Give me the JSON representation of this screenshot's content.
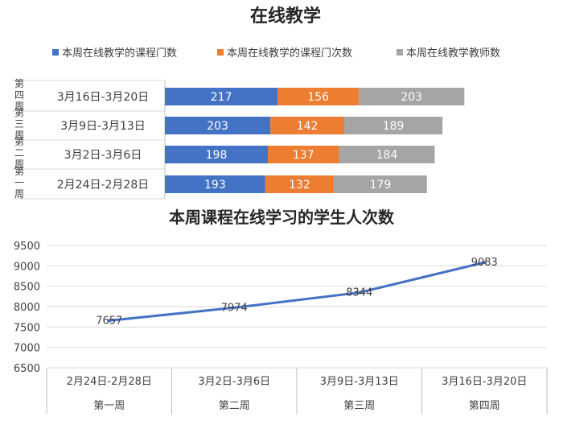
{
  "colors": {
    "blue": "#4472C4",
    "orange": "#ED7D31",
    "gray": "#A5A5A5",
    "text": "#404040",
    "grid": "#D9D9D9",
    "title": "#262626"
  },
  "chart_data": [
    {
      "type": "bar",
      "orientation": "horizontal",
      "stacked": true,
      "title": "在线教学",
      "legend_position": "top",
      "categories": [
        {
          "week": "第四周",
          "week_vertical": "第\n四\n周",
          "range": "3月16日-3月20日"
        },
        {
          "week": "第三周",
          "week_vertical": "第\n三\n周",
          "range": "3月9日-3月13日"
        },
        {
          "week": "第二周",
          "week_vertical": "第\n二\n周",
          "range": "3月2日-3月6日"
        },
        {
          "week": "第一周",
          "week_vertical": "第\n一\n周",
          "range": "2月24日-2月28日"
        }
      ],
      "series": [
        {
          "name": "本周在线教学的课程门数",
          "color": "#4472C4",
          "values": [
            217,
            203,
            198,
            193
          ]
        },
        {
          "name": "本周在线教学的课程门次数",
          "color": "#ED7D31",
          "values": [
            156,
            142,
            137,
            132
          ]
        },
        {
          "name": "本周在线教学教师数",
          "color": "#A5A5A5",
          "values": [
            203,
            189,
            184,
            179
          ]
        }
      ]
    },
    {
      "type": "line",
      "title": "本周课程在线学习的学生人次数",
      "x": [
        {
          "range": "2月24日-2月28日",
          "week": "第一周"
        },
        {
          "range": "3月2日-3月6日",
          "week": "第二周"
        },
        {
          "range": "3月9日-3月13日",
          "week": "第三周"
        },
        {
          "range": "3月16日-3月20日",
          "week": "第四周"
        }
      ],
      "values": [
        7657,
        7974,
        8344,
        9083
      ],
      "ylim": [
        6500,
        9500
      ],
      "yticks": [
        6500,
        7000,
        7500,
        8000,
        8500,
        9000,
        9500
      ],
      "color": "#4472C4",
      "grid": true
    }
  ]
}
